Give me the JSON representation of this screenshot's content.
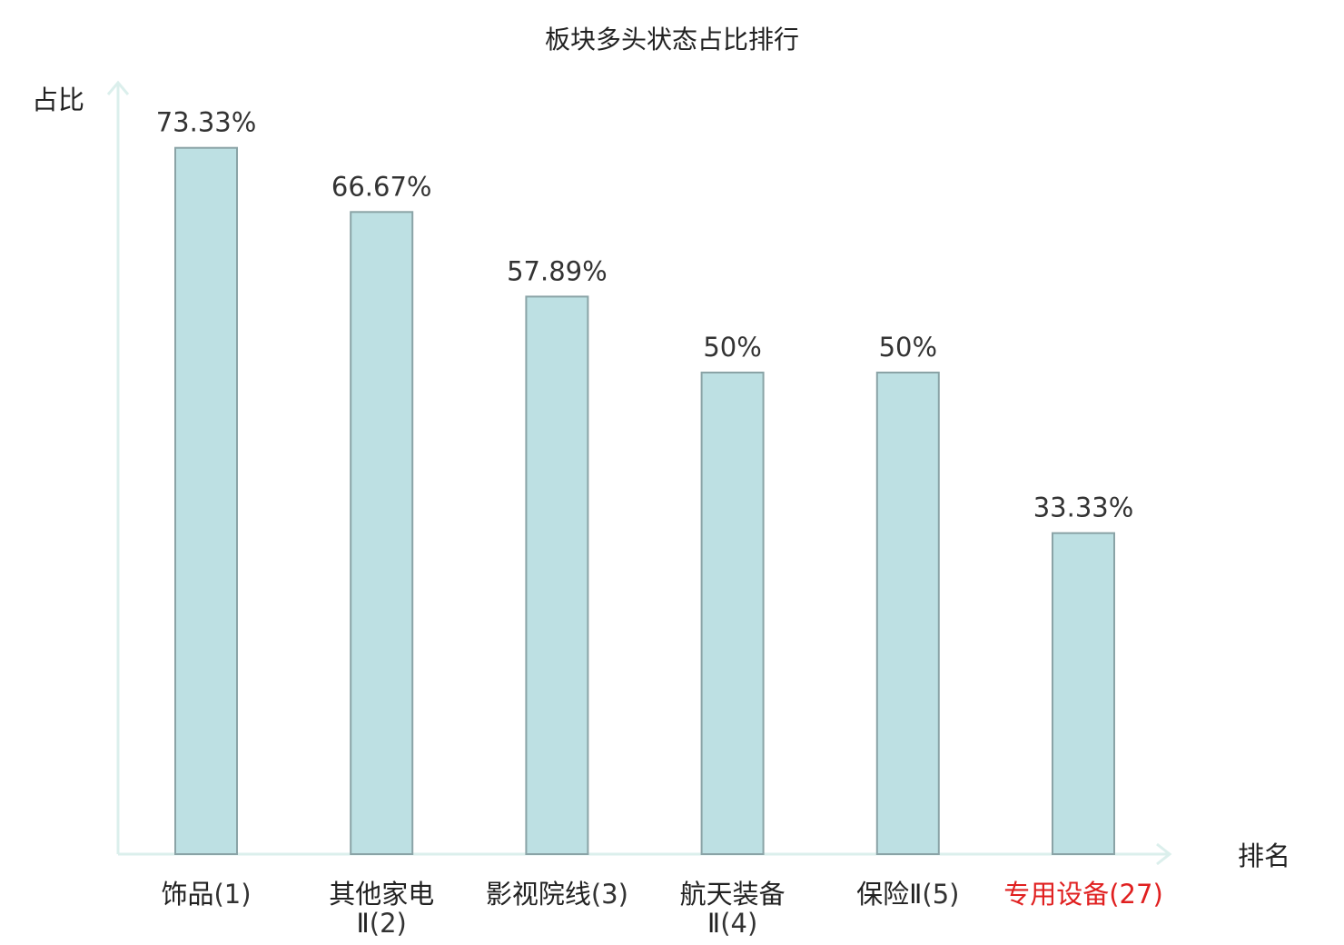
{
  "colors": {
    "bar_fill": "#bde0e3",
    "bar_stroke": "#8aa3a6",
    "axis": "#dbefec",
    "text": "#222222",
    "highlight": "#e02020"
  },
  "chart_data": {
    "type": "bar",
    "title": "板块多头状态占比排行",
    "xlabel": "排名",
    "ylabel": "占比",
    "ylim": [
      0,
      80
    ],
    "grid": false,
    "legend": "none",
    "categories": [
      {
        "name": [
          "饰品"
        ],
        "rank": "(1)",
        "highlight": false
      },
      {
        "name": [
          "其他家电",
          "Ⅱ"
        ],
        "rank": "(2)",
        "highlight": false
      },
      {
        "name": [
          "影视院线"
        ],
        "rank": "(3)",
        "highlight": false
      },
      {
        "name": [
          "航天装备",
          "Ⅱ"
        ],
        "rank": "(4)",
        "highlight": false
      },
      {
        "name": [
          "保险Ⅱ"
        ],
        "rank": "(5)",
        "highlight": false
      },
      {
        "name": [
          "专用设备"
        ],
        "rank": "(27)",
        "highlight": true
      }
    ],
    "values": [
      73.33,
      66.67,
      57.89,
      50,
      50,
      33.33
    ],
    "value_labels": [
      "73.33%",
      "66.67%",
      "57.89%",
      "50%",
      "50%",
      "33.33%"
    ]
  }
}
